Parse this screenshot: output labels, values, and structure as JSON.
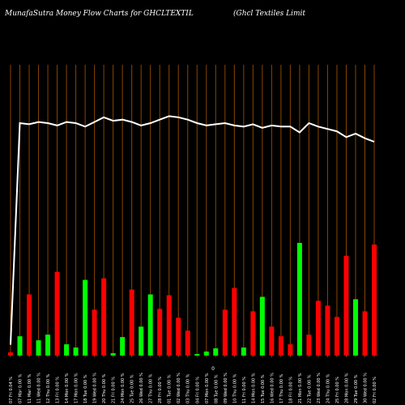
{
  "header": {
    "title_left": "MunafaSutra  Money Flow  Charts for GHCLTEXTIL",
    "title_right": "(Ghcl Textiles Limit"
  },
  "chart_data": {
    "type": "bar",
    "title": "MunafaSutra  Money Flow  Charts for GHCLTEXTIL",
    "x_label": "",
    "y_label": "",
    "grid": true,
    "grid_orientation": "vertical",
    "zero_label": "0",
    "colors": {
      "up": "#00ff00",
      "down": "#ff0000",
      "grid": "#8b4500",
      "line": "#ffffff",
      "background": "#000000"
    },
    "categories": [
      "07 Fri 0.04 %",
      "07 Mar 0.00 %",
      "11 Mar 0.00 %",
      "11 Wed 0.00 %",
      "12 Thu 0.00 %",
      "13 Fri 0.00 %",
      "14 Mon 0.00 %",
      "17 Mon 0.00 %",
      "18 Tue 0.00 %",
      "19 Wed 0.00 %",
      "20 Thu 0.00 %",
      "21 Fri 0.00 %",
      "24 Mon 0.00 %",
      "25 Tue 0.00 %",
      "26 Wed 0.00 %",
      "27 Thu 0.00 %",
      "28 Fri 0.00 %",
      "01 Tue 0.00 %",
      "02 Wed 0.00 %",
      "03 Thu 0.00 %",
      "04 Fri 0.00 %",
      "07 Mon 0.00 %",
      "08 Tue 0.00 %",
      "09 Wed 0.00 %",
      "10 Thu 0.00 %",
      "11 Fri 0.00 %",
      "14 Mon 0.00 %",
      "15 Tue 0.00 %",
      "16 Wed 0.00 %",
      "17 Thu 0.00 %",
      "18 Fri 0.00 %",
      "21 Mon 0.00 %",
      "22 Tue 0.00 %",
      "23 Wed 0.00 %",
      "24 Thu 0.00 %",
      "25 Fri 0.00 %",
      "28 Mon 0.00 %",
      "29 Tue 0.00 %",
      "30 Wed 0.00 %",
      "02 Fri 0.00 %"
    ],
    "volume": [
      4,
      24,
      76,
      19,
      26,
      104,
      14,
      10,
      94,
      57,
      96,
      3,
      23,
      82,
      36,
      76,
      58,
      75,
      47,
      31,
      2,
      5,
      9,
      57,
      84,
      10,
      55,
      73,
      36,
      24,
      14,
      140,
      26,
      68,
      62,
      48,
      124,
      70,
      55,
      138
    ],
    "direction": [
      "down",
      "up",
      "down",
      "up",
      "up",
      "down",
      "up",
      "up",
      "up",
      "down",
      "down",
      "up",
      "up",
      "down",
      "up",
      "up",
      "down",
      "down",
      "down",
      "down",
      "up",
      "up",
      "up",
      "down",
      "down",
      "up",
      "down",
      "up",
      "down",
      "down",
      "down",
      "up",
      "down",
      "down",
      "down",
      "down",
      "down",
      "up",
      "down",
      "down"
    ],
    "price_line": [
      10,
      200,
      199,
      201,
      200,
      198,
      201,
      200,
      197,
      201,
      205,
      202,
      203,
      201,
      198,
      200,
      203,
      206,
      205,
      203,
      200,
      198,
      199,
      200,
      198,
      197,
      199,
      196,
      198,
      197,
      197,
      192,
      200,
      197,
      195,
      193,
      188,
      191,
      187,
      184
    ],
    "price_axis_range": [
      0,
      250
    ],
    "volume_axis_range": [
      0,
      160
    ]
  }
}
